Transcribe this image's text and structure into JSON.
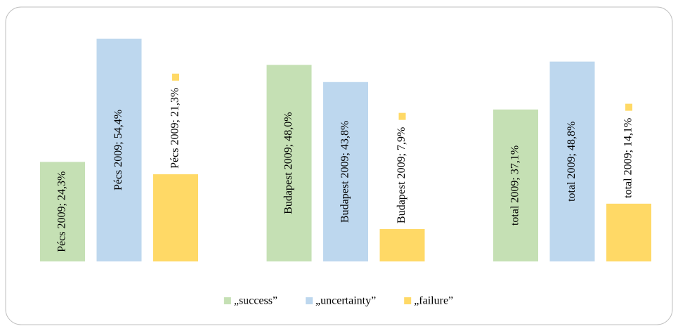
{
  "chart_data": {
    "type": "bar",
    "categories": [
      "Pécs 2009",
      "Budapest 2009",
      "total 2009"
    ],
    "series": [
      {
        "name": "„success”",
        "color": "#c5e0b4",
        "values": [
          24.3,
          48.0,
          37.1
        ],
        "value_labels": [
          "Pécs 2009; 24,3%",
          "Budapest 2009; 48,0%",
          "total 2009; 37,1%"
        ]
      },
      {
        "name": "„uncertainty”",
        "color": "#bdd7ee",
        "values": [
          54.4,
          43.8,
          48.8
        ],
        "value_labels": [
          "Pécs 2009; 54,4%",
          "Budapest 2009; 43,8%",
          "total 2009; 48,8%"
        ]
      },
      {
        "name": "„failure”",
        "color": "#ffd966",
        "values": [
          21.3,
          7.9,
          14.1
        ],
        "value_labels": [
          "Pécs 2009; 21,3%",
          "Budapest 2009; 7,9%",
          "total 2009; 14,1%"
        ]
      }
    ]
  }
}
